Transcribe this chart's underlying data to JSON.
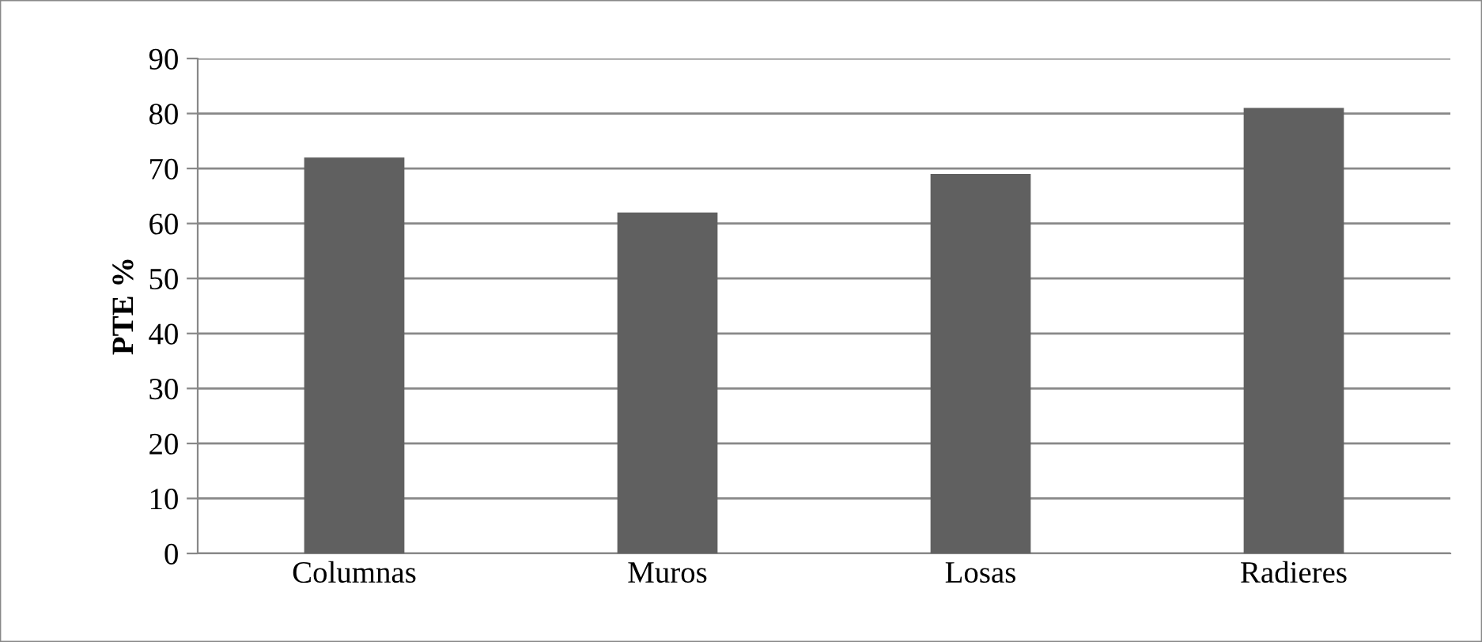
{
  "chart_data": {
    "type": "bar",
    "ylabel": "PTE %",
    "categories": [
      "Columnas",
      "Muros",
      "Losas",
      "Radieres"
    ],
    "values": [
      72,
      62,
      69,
      81
    ],
    "color": "#606060",
    "ylim": [
      0,
      90
    ],
    "yticks": [
      0,
      10,
      20,
      30,
      40,
      50,
      60,
      70,
      80,
      90
    ],
    "grid": "y"
  }
}
